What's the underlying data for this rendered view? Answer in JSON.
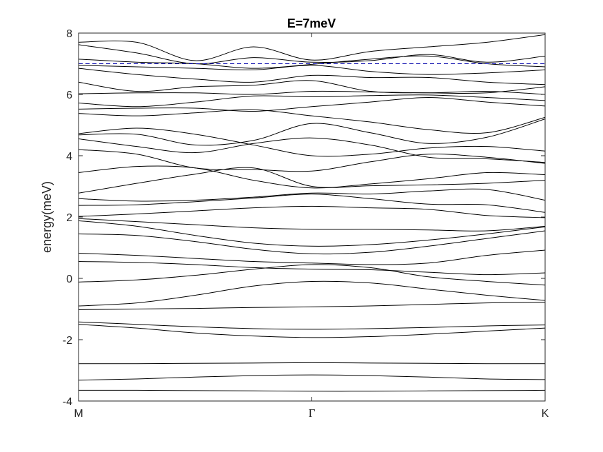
{
  "chart_data": {
    "type": "line",
    "title": "E=7meV",
    "xlabel": "",
    "ylabel": "energy(meV)",
    "xlim": [
      0,
      2
    ],
    "ylim": [
      -4,
      8
    ],
    "yticks": [
      -4,
      -2,
      0,
      2,
      4,
      6,
      8
    ],
    "xticks": [
      {
        "x": 0,
        "label": "M"
      },
      {
        "x": 1,
        "label": "Γ"
      },
      {
        "x": 2,
        "label": "K"
      }
    ],
    "grid": false,
    "band_color": "#000000",
    "reference_line": {
      "y": 7.0,
      "color": "#0000aa",
      "style": "dashed"
    },
    "x": [
      0,
      0.25,
      0.5,
      0.75,
      1.0,
      1.25,
      1.5,
      1.75,
      2.0
    ],
    "series": [
      {
        "values": [
          -3.65,
          -3.65,
          -3.66,
          -3.67,
          -3.68,
          -3.68,
          -3.67,
          -3.66,
          -3.65
        ]
      },
      {
        "values": [
          -3.32,
          -3.28,
          -3.22,
          -3.17,
          -3.15,
          -3.17,
          -3.22,
          -3.28,
          -3.3
        ]
      },
      {
        "values": [
          -2.78,
          -2.78,
          -2.77,
          -2.76,
          -2.75,
          -2.76,
          -2.77,
          -2.78,
          -2.78
        ]
      },
      {
        "values": [
          -1.5,
          -1.62,
          -1.78,
          -1.88,
          -1.93,
          -1.9,
          -1.82,
          -1.72,
          -1.62
        ]
      },
      {
        "values": [
          -1.42,
          -1.5,
          -1.58,
          -1.64,
          -1.66,
          -1.64,
          -1.6,
          -1.55,
          -1.52
        ]
      },
      {
        "values": [
          -1.02,
          -1.0,
          -0.98,
          -0.95,
          -0.93,
          -0.9,
          -0.85,
          -0.8,
          -0.78
        ]
      },
      {
        "values": [
          -0.9,
          -0.8,
          -0.55,
          -0.25,
          -0.1,
          -0.15,
          -0.35,
          -0.55,
          -0.72
        ]
      },
      {
        "values": [
          -0.12,
          -0.05,
          0.1,
          0.3,
          0.45,
          0.35,
          0.05,
          -0.1,
          -0.22
        ]
      },
      {
        "values": [
          0.55,
          0.52,
          0.45,
          0.35,
          0.3,
          0.28,
          0.2,
          0.12,
          0.18
        ]
      },
      {
        "values": [
          0.82,
          0.75,
          0.65,
          0.55,
          0.5,
          0.45,
          0.5,
          0.75,
          0.92
        ]
      },
      {
        "values": [
          1.45,
          1.4,
          1.2,
          0.95,
          0.8,
          0.85,
          1.05,
          1.3,
          1.55
        ]
      },
      {
        "values": [
          1.88,
          1.7,
          1.4,
          1.15,
          1.05,
          1.1,
          1.25,
          1.45,
          1.68
        ]
      },
      {
        "values": [
          1.95,
          1.85,
          1.75,
          1.65,
          1.6,
          1.6,
          1.58,
          1.55,
          1.7
        ]
      },
      {
        "values": [
          2.02,
          2.1,
          2.2,
          2.3,
          2.35,
          2.3,
          2.25,
          2.05,
          1.98
        ]
      },
      {
        "values": [
          2.38,
          2.4,
          2.5,
          2.62,
          2.75,
          2.6,
          2.42,
          2.4,
          2.15
        ]
      },
      {
        "values": [
          2.6,
          2.52,
          2.55,
          2.65,
          2.78,
          2.75,
          2.85,
          2.9,
          2.55
        ]
      },
      {
        "values": [
          2.78,
          3.1,
          3.4,
          3.6,
          3.0,
          3.02,
          3.05,
          3.1,
          3.2
        ]
      },
      {
        "values": [
          3.45,
          3.65,
          3.6,
          3.2,
          2.95,
          3.08,
          3.25,
          3.45,
          3.38
        ]
      },
      {
        "values": [
          4.2,
          4.05,
          3.6,
          3.55,
          3.5,
          3.8,
          4.05,
          3.95,
          3.75
        ]
      },
      {
        "values": [
          4.55,
          4.3,
          4.1,
          4.4,
          4.58,
          4.35,
          3.95,
          3.9,
          3.78
        ]
      },
      {
        "values": [
          4.72,
          4.9,
          4.7,
          4.35,
          4.0,
          4.05,
          4.25,
          4.3,
          4.15
        ]
      },
      {
        "values": [
          4.68,
          4.7,
          4.35,
          4.5,
          5.05,
          4.75,
          4.4,
          4.6,
          5.2
        ]
      },
      {
        "values": [
          5.38,
          5.3,
          5.4,
          5.5,
          5.3,
          5.1,
          4.85,
          4.75,
          5.25
        ]
      },
      {
        "values": [
          5.52,
          5.55,
          5.55,
          5.45,
          5.6,
          5.75,
          5.9,
          5.75,
          5.62
        ]
      },
      {
        "values": [
          5.72,
          5.6,
          5.75,
          5.95,
          5.92,
          5.96,
          5.98,
          5.9,
          5.8
        ]
      },
      {
        "values": [
          6.02,
          6.05,
          6.05,
          6.0,
          6.1,
          6.08,
          6.05,
          6.1,
          6.0
        ]
      },
      {
        "values": [
          6.4,
          6.1,
          6.25,
          6.3,
          6.45,
          6.1,
          6.05,
          6.05,
          6.25
        ]
      },
      {
        "values": [
          6.85,
          6.65,
          6.5,
          6.4,
          6.62,
          6.55,
          6.55,
          6.4,
          6.32
        ]
      },
      {
        "values": [
          6.95,
          6.9,
          6.85,
          6.8,
          6.95,
          6.75,
          6.65,
          6.7,
          6.8
        ]
      },
      {
        "values": [
          7.15,
          7.05,
          7.0,
          6.85,
          6.98,
          7.15,
          7.25,
          7.0,
          6.9
        ]
      },
      {
        "values": [
          7.62,
          7.35,
          7.0,
          7.2,
          7.05,
          7.1,
          7.3,
          7.05,
          7.25
        ]
      },
      {
        "values": [
          7.7,
          7.7,
          7.1,
          7.55,
          7.12,
          7.4,
          7.55,
          7.7,
          7.95
        ]
      }
    ]
  }
}
